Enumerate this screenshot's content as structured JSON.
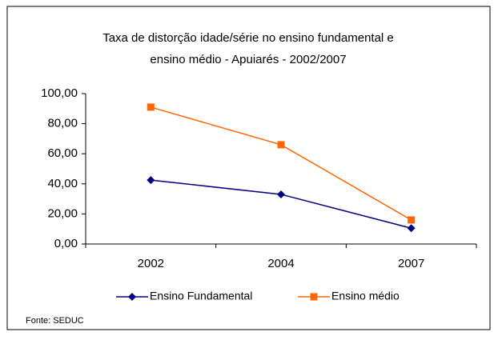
{
  "chart_data": {
    "type": "line",
    "title": [
      "Taxa de distorção idade/série no ensino fundamental e",
      "ensino médio - Apuiarés - 2002/2007"
    ],
    "categories": [
      "2002",
      "2004",
      "2007"
    ],
    "series": [
      {
        "name": "Ensino Fundamental",
        "color": "#000080",
        "marker": "diamond",
        "values": [
          42.5,
          33,
          10.5
        ]
      },
      {
        "name": "Ensino médio",
        "color": "#ff6600",
        "marker": "square",
        "values": [
          91,
          66,
          16
        ]
      }
    ],
    "ylim": [
      0,
      100
    ],
    "yticks": [
      {
        "value": 0,
        "label": "0,00"
      },
      {
        "value": 20,
        "label": "20,00"
      },
      {
        "value": 40,
        "label": "40,00"
      },
      {
        "value": 60,
        "label": "60,00"
      },
      {
        "value": 80,
        "label": "80,00"
      },
      {
        "value": 100,
        "label": "100,00"
      }
    ],
    "grid": false,
    "legend": "bottom",
    "annotation": "Fonte: SEDUC"
  }
}
